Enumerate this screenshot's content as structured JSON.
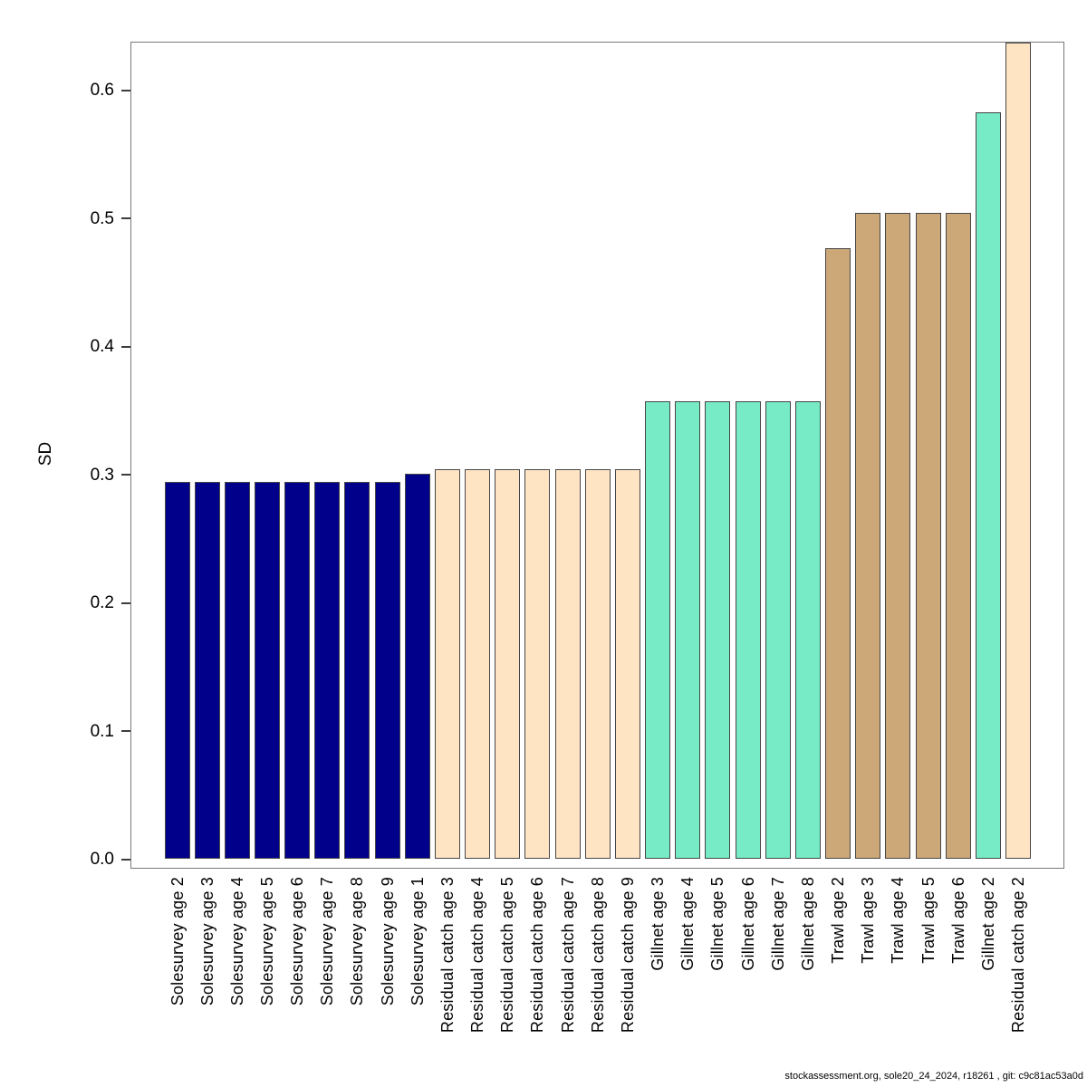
{
  "footer": "stockassessment.org, sole20_24_2024, r18261 , git: c9c81ac53a0d",
  "chart_data": {
    "type": "bar",
    "title": "",
    "xlabel": "",
    "ylabel": "SD",
    "ylim": [
      0,
      0.637
    ],
    "grid": false,
    "legend_position": "none",
    "yticks": [
      0.0,
      0.1,
      0.2,
      0.3,
      0.4,
      0.5,
      0.6
    ],
    "categories": [
      "Solesurvey age 2",
      "Solesurvey age 3",
      "Solesurvey age 4",
      "Solesurvey age 5",
      "Solesurvey age 6",
      "Solesurvey age 7",
      "Solesurvey age 8",
      "Solesurvey age 9",
      "Solesurvey age 1",
      "Residual catch age 3",
      "Residual catch age 4",
      "Residual catch age 5",
      "Residual catch age 6",
      "Residual catch age 7",
      "Residual catch age 8",
      "Residual catch age 9",
      "Gillnet age 3",
      "Gillnet age 4",
      "Gillnet age 5",
      "Gillnet age 6",
      "Gillnet age 7",
      "Gillnet age 8",
      "Trawl age 2",
      "Trawl age 3",
      "Trawl age 4",
      "Trawl age 5",
      "Trawl age 6",
      "Gillnet age 2",
      "Residual catch age 2"
    ],
    "values": [
      0.294,
      0.294,
      0.294,
      0.294,
      0.294,
      0.294,
      0.294,
      0.294,
      0.301,
      0.304,
      0.304,
      0.304,
      0.304,
      0.304,
      0.304,
      0.304,
      0.357,
      0.357,
      0.357,
      0.357,
      0.357,
      0.357,
      0.477,
      0.504,
      0.504,
      0.504,
      0.504,
      0.583,
      0.637
    ],
    "groups": [
      "Solesurvey",
      "Solesurvey",
      "Solesurvey",
      "Solesurvey",
      "Solesurvey",
      "Solesurvey",
      "Solesurvey",
      "Solesurvey",
      "Solesurvey",
      "Residual catch",
      "Residual catch",
      "Residual catch",
      "Residual catch",
      "Residual catch",
      "Residual catch",
      "Residual catch",
      "Gillnet",
      "Gillnet",
      "Gillnet",
      "Gillnet",
      "Gillnet",
      "Gillnet",
      "Trawl",
      "Trawl",
      "Trawl",
      "Trawl",
      "Trawl",
      "Gillnet",
      "Residual catch"
    ],
    "group_colors": {
      "Solesurvey": "#00008B",
      "Residual catch": "#FFE4C4",
      "Gillnet": "#76EBC5",
      "Trawl": "#CCA878"
    },
    "bar_border_color": "#464646",
    "axis_color": "#787878",
    "text_color": "#000000"
  }
}
